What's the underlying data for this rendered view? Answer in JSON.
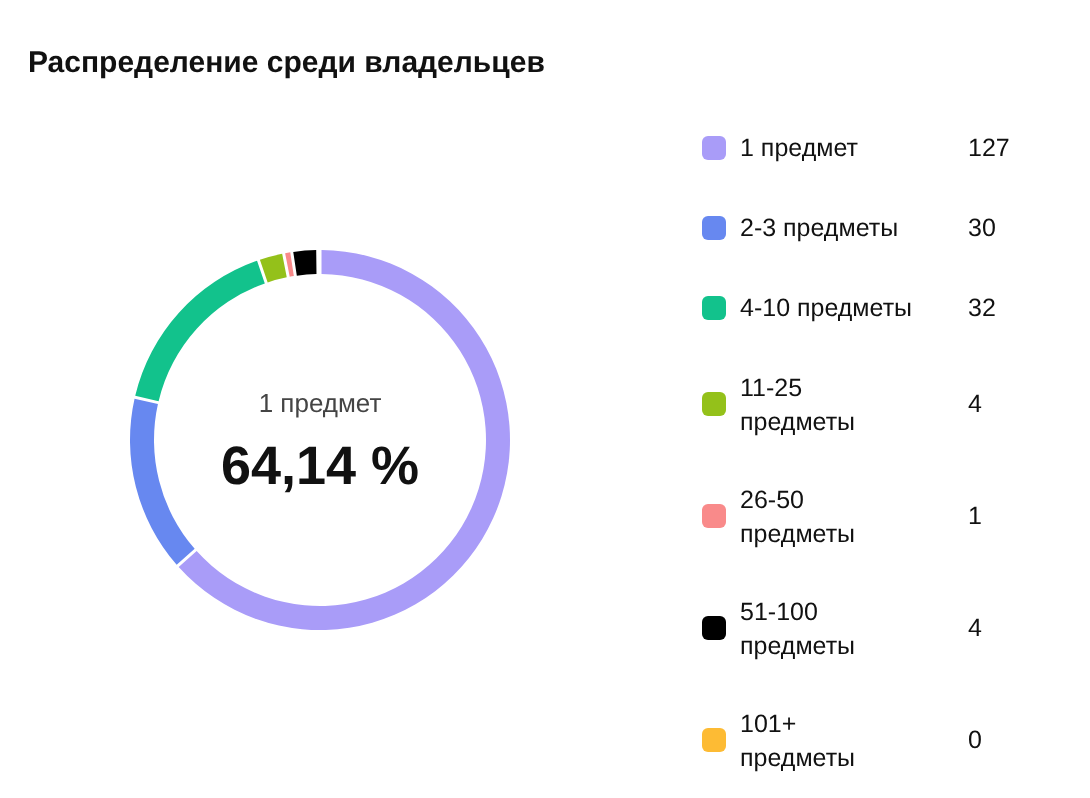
{
  "chart_data": {
    "type": "donut",
    "title": "Распределение среди владельцев",
    "categories": [
      "1 предмет",
      "2-3 предметы",
      "4-10 предметы",
      "11-25 предметы",
      "26-50 предметы",
      "51-100 предметы",
      "101+ предметы"
    ],
    "values": [
      127,
      30,
      32,
      4,
      1,
      4,
      0
    ],
    "colors": [
      "#a99cf8",
      "#6788f0",
      "#12c28c",
      "#94c11a",
      "#f98a8a",
      "#000000",
      "#fdbb34"
    ],
    "annotations": [
      "1 предмет",
      "64,14 %"
    ],
    "value_labels": [
      "127",
      "30",
      "32",
      "4",
      "1",
      "4",
      "0"
    ],
    "legend": "right"
  }
}
